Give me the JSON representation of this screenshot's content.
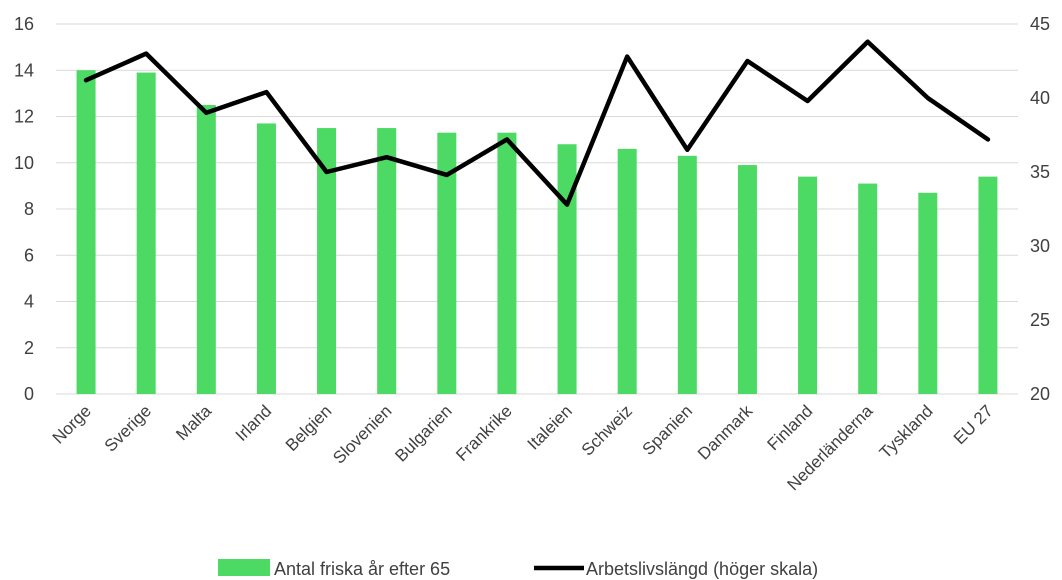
{
  "chart_data": {
    "type": "bar+line",
    "categories": [
      "Norge",
      "Sverige",
      "Malta",
      "Irland",
      "Belgien",
      "Slovenien",
      "Bulgarien",
      "Frankrike",
      "Italeien",
      "Schweiz",
      "Spanien",
      "Danmark",
      "Finland",
      "Nederländerna",
      "Tyskland",
      "EU 27"
    ],
    "series": [
      {
        "name": "Antal friska år efter 65",
        "type": "bar",
        "axis": "left",
        "color": "#4cd964",
        "values": [
          14.0,
          13.9,
          12.5,
          11.7,
          11.5,
          11.5,
          11.3,
          11.3,
          10.8,
          10.6,
          10.3,
          9.9,
          9.4,
          9.1,
          8.7,
          9.4
        ]
      },
      {
        "name": "Arbetslivslängd (höger skala)",
        "type": "line",
        "axis": "right",
        "color": "#000000",
        "values": [
          41.2,
          43.0,
          39.0,
          40.4,
          35.0,
          36.0,
          34.8,
          37.2,
          32.8,
          42.8,
          36.5,
          42.5,
          39.8,
          43.8,
          40.0,
          37.2
        ]
      }
    ],
    "y_left": {
      "min": 0,
      "max": 16,
      "ticks": [
        "0",
        "2",
        "4",
        "6",
        "8",
        "10",
        "12",
        "14",
        "16"
      ]
    },
    "y_right": {
      "min": 20,
      "max": 45,
      "ticks": [
        "20",
        "25",
        "30",
        "35",
        "40",
        "45"
      ]
    },
    "grid": true,
    "legend_position": "bottom"
  }
}
